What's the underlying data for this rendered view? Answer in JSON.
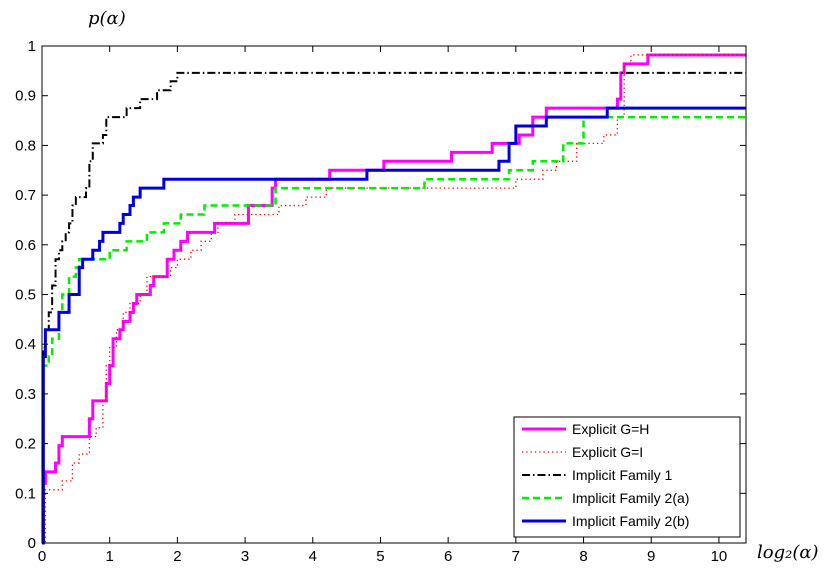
{
  "chart_data": {
    "type": "line",
    "ylabel": "p(α)",
    "xlabel": "log₂(α)",
    "xlim": [
      0,
      10.4
    ],
    "ylim": [
      0,
      1
    ],
    "xticks": [
      "0",
      "1",
      "2",
      "3",
      "4",
      "5",
      "6",
      "7",
      "8",
      "9",
      "10"
    ],
    "yticks": [
      "0",
      "0.1",
      "0.2",
      "0.3",
      "0.4",
      "0.5",
      "0.6",
      "0.7",
      "0.8",
      "0.9",
      "1"
    ],
    "grid": false,
    "legend_position": "bottom-right",
    "series": [
      {
        "name": "Explicit G=H",
        "color": "#ff00ff",
        "dash": "solid",
        "width": 3,
        "points": [
          [
            0,
            0
          ],
          [
            0.02,
            0.12
          ],
          [
            0.05,
            0.143
          ],
          [
            0.2,
            0.161
          ],
          [
            0.25,
            0.196
          ],
          [
            0.3,
            0.214
          ],
          [
            0.55,
            0.214
          ],
          [
            0.7,
            0.25
          ],
          [
            0.75,
            0.286
          ],
          [
            0.9,
            0.286
          ],
          [
            0.95,
            0.321
          ],
          [
            1.0,
            0.357
          ],
          [
            1.05,
            0.411
          ],
          [
            1.15,
            0.429
          ],
          [
            1.2,
            0.446
          ],
          [
            1.3,
            0.464
          ],
          [
            1.35,
            0.482
          ],
          [
            1.4,
            0.5
          ],
          [
            1.6,
            0.518
          ],
          [
            1.65,
            0.536
          ],
          [
            1.8,
            0.536
          ],
          [
            1.85,
            0.571
          ],
          [
            1.95,
            0.589
          ],
          [
            2.05,
            0.607
          ],
          [
            2.15,
            0.625
          ],
          [
            2.5,
            0.625
          ],
          [
            2.55,
            0.643
          ],
          [
            3.0,
            0.643
          ],
          [
            3.05,
            0.679
          ],
          [
            3.3,
            0.679
          ],
          [
            3.4,
            0.714
          ],
          [
            3.45,
            0.732
          ],
          [
            4.2,
            0.732
          ],
          [
            4.25,
            0.75
          ],
          [
            5.0,
            0.75
          ],
          [
            5.05,
            0.768
          ],
          [
            6.0,
            0.768
          ],
          [
            6.05,
            0.786
          ],
          [
            6.6,
            0.786
          ],
          [
            6.65,
            0.804
          ],
          [
            7.0,
            0.804
          ],
          [
            7.05,
            0.821
          ],
          [
            7.2,
            0.821
          ],
          [
            7.25,
            0.857
          ],
          [
            7.4,
            0.857
          ],
          [
            7.45,
            0.875
          ],
          [
            8.45,
            0.875
          ],
          [
            8.5,
            0.893
          ],
          [
            8.55,
            0.946
          ],
          [
            8.6,
            0.964
          ],
          [
            8.9,
            0.964
          ],
          [
            8.95,
            0.982
          ],
          [
            10.4,
            0.982
          ]
        ]
      },
      {
        "name": "Explicit G=I",
        "color": "#ff0000",
        "dash": "dotted",
        "width": 1.3,
        "points": [
          [
            0,
            0
          ],
          [
            0.05,
            0.107
          ],
          [
            0.3,
            0.125
          ],
          [
            0.45,
            0.161
          ],
          [
            0.55,
            0.179
          ],
          [
            0.7,
            0.214
          ],
          [
            0.8,
            0.232
          ],
          [
            0.9,
            0.286
          ],
          [
            0.95,
            0.357
          ],
          [
            1.0,
            0.393
          ],
          [
            1.1,
            0.429
          ],
          [
            1.2,
            0.464
          ],
          [
            1.3,
            0.482
          ],
          [
            1.45,
            0.5
          ],
          [
            1.55,
            0.536
          ],
          [
            1.85,
            0.536
          ],
          [
            1.9,
            0.554
          ],
          [
            2.0,
            0.571
          ],
          [
            2.2,
            0.589
          ],
          [
            2.35,
            0.607
          ],
          [
            2.5,
            0.625
          ],
          [
            2.6,
            0.643
          ],
          [
            2.8,
            0.643
          ],
          [
            2.85,
            0.661
          ],
          [
            3.3,
            0.661
          ],
          [
            3.5,
            0.679
          ],
          [
            3.7,
            0.679
          ],
          [
            3.9,
            0.696
          ],
          [
            4.2,
            0.714
          ],
          [
            6.9,
            0.714
          ],
          [
            7.0,
            0.732
          ],
          [
            7.3,
            0.732
          ],
          [
            7.4,
            0.75
          ],
          [
            7.6,
            0.768
          ],
          [
            7.9,
            0.804
          ],
          [
            8.3,
            0.821
          ],
          [
            8.5,
            0.857
          ],
          [
            8.6,
            0.964
          ],
          [
            8.7,
            0.982
          ],
          [
            10.4,
            0.982
          ]
        ]
      },
      {
        "name": "Implicit Family 1",
        "color": "#000000",
        "dash": "dashdot",
        "width": 2,
        "points": [
          [
            0,
            0
          ],
          [
            0.02,
            0.393
          ],
          [
            0.05,
            0.429
          ],
          [
            0.1,
            0.464
          ],
          [
            0.15,
            0.518
          ],
          [
            0.2,
            0.571
          ],
          [
            0.25,
            0.589
          ],
          [
            0.3,
            0.607
          ],
          [
            0.35,
            0.625
          ],
          [
            0.4,
            0.643
          ],
          [
            0.45,
            0.679
          ],
          [
            0.5,
            0.696
          ],
          [
            0.65,
            0.714
          ],
          [
            0.7,
            0.768
          ],
          [
            0.75,
            0.804
          ],
          [
            0.9,
            0.821
          ],
          [
            0.95,
            0.857
          ],
          [
            1.2,
            0.857
          ],
          [
            1.25,
            0.875
          ],
          [
            1.4,
            0.875
          ],
          [
            1.45,
            0.893
          ],
          [
            1.65,
            0.893
          ],
          [
            1.7,
            0.911
          ],
          [
            1.85,
            0.911
          ],
          [
            1.9,
            0.929
          ],
          [
            2.0,
            0.946
          ],
          [
            10.4,
            0.946
          ]
        ]
      },
      {
        "name": "Implicit Family 2(a)",
        "color": "#00ee00",
        "dash": "dashed",
        "width": 2.5,
        "points": [
          [
            0,
            0
          ],
          [
            0.02,
            0.357
          ],
          [
            0.1,
            0.375
          ],
          [
            0.15,
            0.411
          ],
          [
            0.25,
            0.464
          ],
          [
            0.3,
            0.5
          ],
          [
            0.4,
            0.536
          ],
          [
            0.5,
            0.554
          ],
          [
            0.55,
            0.571
          ],
          [
            0.95,
            0.571
          ],
          [
            1.0,
            0.589
          ],
          [
            1.2,
            0.589
          ],
          [
            1.25,
            0.607
          ],
          [
            1.5,
            0.607
          ],
          [
            1.55,
            0.625
          ],
          [
            1.75,
            0.625
          ],
          [
            1.8,
            0.643
          ],
          [
            2.0,
            0.643
          ],
          [
            2.05,
            0.661
          ],
          [
            2.3,
            0.661
          ],
          [
            2.4,
            0.679
          ],
          [
            3.4,
            0.679
          ],
          [
            3.45,
            0.714
          ],
          [
            5.6,
            0.714
          ],
          [
            5.65,
            0.732
          ],
          [
            6.85,
            0.732
          ],
          [
            6.9,
            0.75
          ],
          [
            7.2,
            0.75
          ],
          [
            7.25,
            0.768
          ],
          [
            7.65,
            0.768
          ],
          [
            7.7,
            0.804
          ],
          [
            7.9,
            0.804
          ],
          [
            8.0,
            0.857
          ],
          [
            10.4,
            0.857
          ]
        ]
      },
      {
        "name": "Implicit Family 2(b)",
        "color": "#0000dd",
        "dash": "solid",
        "width": 3,
        "points": [
          [
            0,
            0
          ],
          [
            0.02,
            0.375
          ],
          [
            0.05,
            0.429
          ],
          [
            0.2,
            0.429
          ],
          [
            0.25,
            0.464
          ],
          [
            0.35,
            0.464
          ],
          [
            0.4,
            0.5
          ],
          [
            0.5,
            0.5
          ],
          [
            0.55,
            0.554
          ],
          [
            0.6,
            0.571
          ],
          [
            0.75,
            0.589
          ],
          [
            0.85,
            0.607
          ],
          [
            0.9,
            0.625
          ],
          [
            1.1,
            0.625
          ],
          [
            1.15,
            0.643
          ],
          [
            1.2,
            0.661
          ],
          [
            1.3,
            0.679
          ],
          [
            1.35,
            0.696
          ],
          [
            1.45,
            0.714
          ],
          [
            1.75,
            0.714
          ],
          [
            1.8,
            0.732
          ],
          [
            4.75,
            0.732
          ],
          [
            4.8,
            0.75
          ],
          [
            6.7,
            0.75
          ],
          [
            6.75,
            0.768
          ],
          [
            6.85,
            0.768
          ],
          [
            6.9,
            0.804
          ],
          [
            7.0,
            0.839
          ],
          [
            7.4,
            0.839
          ],
          [
            7.45,
            0.857
          ],
          [
            8.3,
            0.857
          ],
          [
            8.35,
            0.875
          ],
          [
            10.4,
            0.875
          ]
        ]
      }
    ]
  }
}
